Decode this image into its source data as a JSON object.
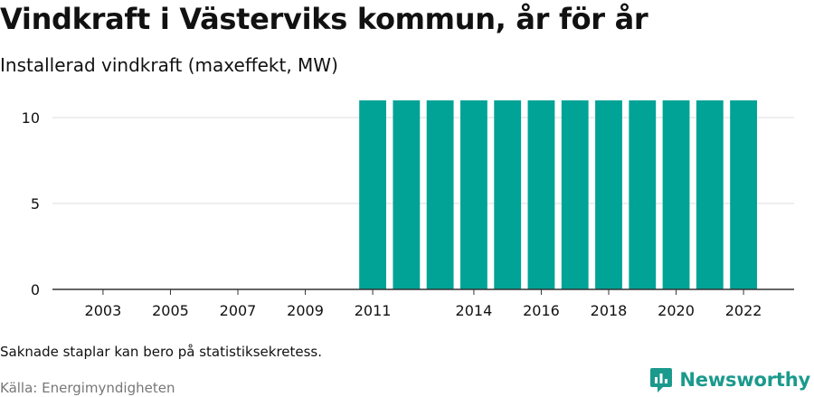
{
  "title": "Vindkraft i Västerviks kommun, år för år",
  "subtitle": "Installerad vindkraft (maxeffekt, MW)",
  "note": "Saknade staplar kan bero på statistiksekretess.",
  "source": "Källa: Energimyndigheten",
  "brand": {
    "name": "Newsworthy",
    "icon": "newsworthy-logo-icon",
    "color": "#1a9a8c"
  },
  "chart_data": {
    "type": "bar",
    "x": [
      2011,
      2012,
      2013,
      2014,
      2015,
      2016,
      2017,
      2018,
      2019,
      2020,
      2021,
      2022
    ],
    "values": [
      11,
      11,
      11,
      11,
      11,
      11,
      11,
      11,
      11,
      11,
      11,
      11
    ],
    "x_tick_labels": [
      "2003",
      "2005",
      "2007",
      "2009",
      "2011",
      "2014",
      "2016",
      "2018",
      "2020",
      "2022"
    ],
    "y_ticks": [
      0,
      5,
      10
    ],
    "xlim": [
      2001.5,
      2023.5
    ],
    "ylim": [
      0,
      12
    ],
    "bar_color": "#00a396",
    "grid": "horizontal",
    "legend": "none"
  }
}
